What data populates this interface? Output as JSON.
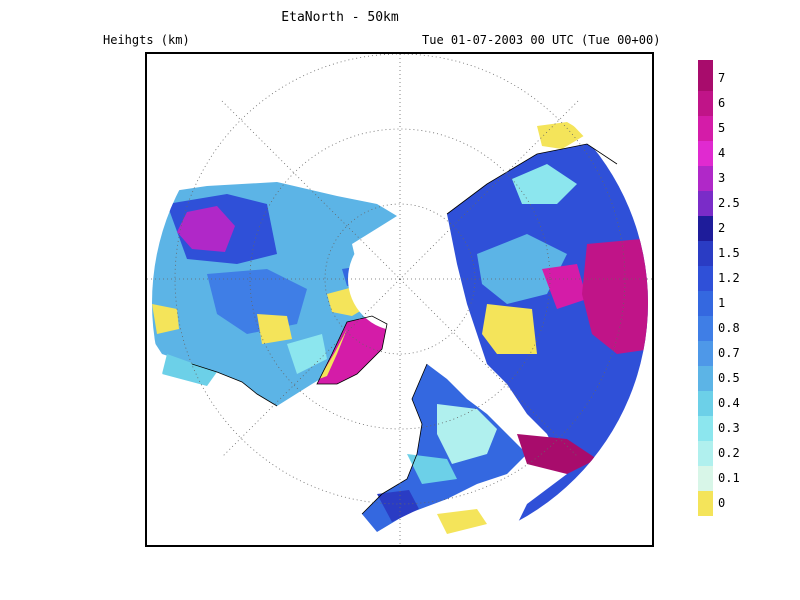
{
  "header": {
    "title": "EtaNorth - 50km",
    "variable_label": "Heihgts (km)",
    "time_label": "Tue 01-07-2003 00 UTC (Tue 00+00)"
  },
  "legend": {
    "levels": [
      {
        "label": "0",
        "color": "#f4e45a"
      },
      {
        "label": "0.1",
        "color": "#d8f6e8"
      },
      {
        "label": "0.2",
        "color": "#b0f0ee"
      },
      {
        "label": "0.3",
        "color": "#8ce6ee"
      },
      {
        "label": "0.4",
        "color": "#6cd0e8"
      },
      {
        "label": "0.5",
        "color": "#5cb4e6"
      },
      {
        "label": "0.7",
        "color": "#4e98e8"
      },
      {
        "label": "0.8",
        "color": "#3f7ee6"
      },
      {
        "label": "1",
        "color": "#3468e0"
      },
      {
        "label": "1.2",
        "color": "#2f50d8"
      },
      {
        "label": "1.5",
        "color": "#2a3cc4"
      },
      {
        "label": "2",
        "color": "#1e1c9a"
      },
      {
        "label": "2.5",
        "color": "#7a2cc8"
      },
      {
        "label": "3",
        "color": "#b028c8"
      },
      {
        "label": "4",
        "color": "#e02ad0"
      },
      {
        "label": "5",
        "color": "#d41ca8"
      },
      {
        "label": "6",
        "color": "#c01488"
      },
      {
        "label": "7",
        "color": "#a80c6c"
      }
    ],
    "top_color": "#a80c6c"
  },
  "map": {
    "projection": "north-polar-stereographic",
    "ocean_color": "#ffffff",
    "coast_color": "#000000",
    "grid": "dotted"
  }
}
